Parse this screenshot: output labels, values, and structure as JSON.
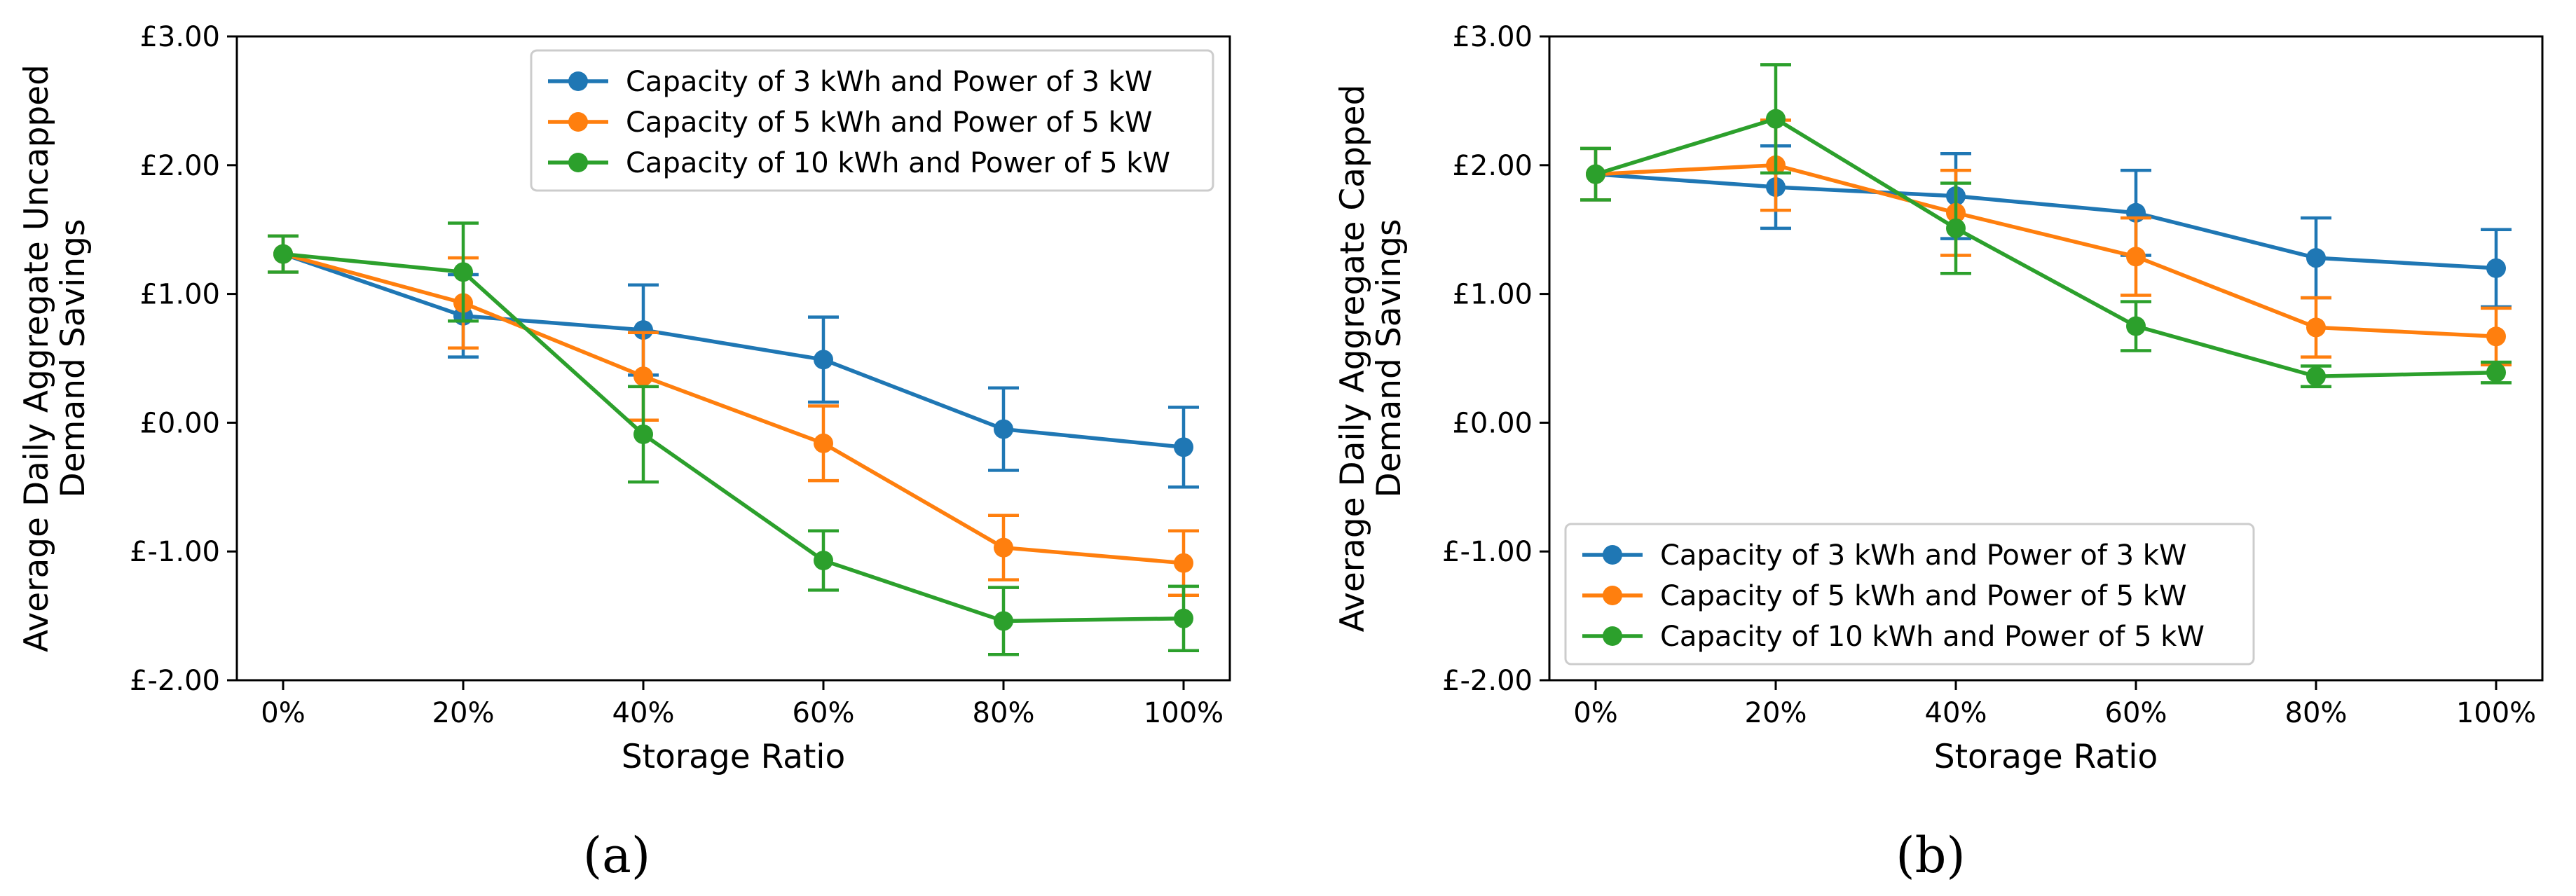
{
  "chart_data": [
    {
      "type": "line",
      "panel_label": "(a)",
      "title": "",
      "xlabel": "Storage Ratio",
      "ylabel_line1": "Average Daily Aggregate Uncapped",
      "ylabel_line2": "Demand Savings",
      "categories": [
        "0%",
        "20%",
        "40%",
        "60%",
        "80%",
        "100%"
      ],
      "ylim": [
        -2,
        3
      ],
      "yticks": [
        3,
        2,
        1,
        0,
        -1,
        -2
      ],
      "ytick_labels": [
        "£3.00",
        "£2.00",
        "£1.00",
        "£0.00",
        "£-1.00",
        "£-2.00"
      ],
      "legend_position": "top-right",
      "series": [
        {
          "name": "Capacity of 3 kWh and Power of 3 kW",
          "color": "#1f77b4",
          "values": [
            1.31,
            0.83,
            0.72,
            0.49,
            -0.05,
            -0.19
          ],
          "errors": [
            0.14,
            0.32,
            0.35,
            0.33,
            0.32,
            0.31
          ]
        },
        {
          "name": "Capacity of 5 kWh and Power of 5 kW",
          "color": "#ff7f0e",
          "values": [
            1.31,
            0.93,
            0.36,
            -0.16,
            -0.97,
            -1.09
          ],
          "errors": [
            0.14,
            0.35,
            0.34,
            0.29,
            0.25,
            0.25
          ]
        },
        {
          "name": "Capacity of 10 kWh and Power of 5 kW",
          "color": "#2ca02c",
          "values": [
            1.31,
            1.17,
            -0.09,
            -1.07,
            -1.54,
            -1.52
          ],
          "errors": [
            0.14,
            0.38,
            0.37,
            0.23,
            0.26,
            0.25
          ]
        }
      ]
    },
    {
      "type": "line",
      "panel_label": "(b)",
      "title": "",
      "xlabel": "Storage Ratio",
      "ylabel_line1": "Average Daily Aggregate Capped",
      "ylabel_line2": "Demand Savings",
      "categories": [
        "0%",
        "20%",
        "40%",
        "60%",
        "80%",
        "100%"
      ],
      "ylim": [
        -2,
        3
      ],
      "yticks": [
        3,
        2,
        1,
        0,
        -1,
        -2
      ],
      "ytick_labels": [
        "£3.00",
        "£2.00",
        "£1.00",
        "£0.00",
        "£-1.00",
        "£-2.00"
      ],
      "legend_position": "bottom-left",
      "series": [
        {
          "name": "Capacity of 3 kWh and Power of 3 kW",
          "color": "#1f77b4",
          "values": [
            1.93,
            1.83,
            1.76,
            1.63,
            1.28,
            1.2
          ],
          "errors": [
            0.2,
            0.32,
            0.33,
            0.33,
            0.31,
            0.3
          ]
        },
        {
          "name": "Capacity of 5 kWh and Power of 5 kW",
          "color": "#ff7f0e",
          "values": [
            1.93,
            2.0,
            1.63,
            1.29,
            0.74,
            0.67
          ],
          "errors": [
            0.2,
            0.35,
            0.33,
            0.3,
            0.23,
            0.22
          ]
        },
        {
          "name": "Capacity of 10 kWh and Power of 5 kW",
          "color": "#2ca02c",
          "values": [
            1.93,
            2.36,
            1.51,
            0.75,
            0.36,
            0.39
          ],
          "errors": [
            0.2,
            0.42,
            0.35,
            0.19,
            0.08,
            0.08
          ]
        }
      ]
    }
  ]
}
